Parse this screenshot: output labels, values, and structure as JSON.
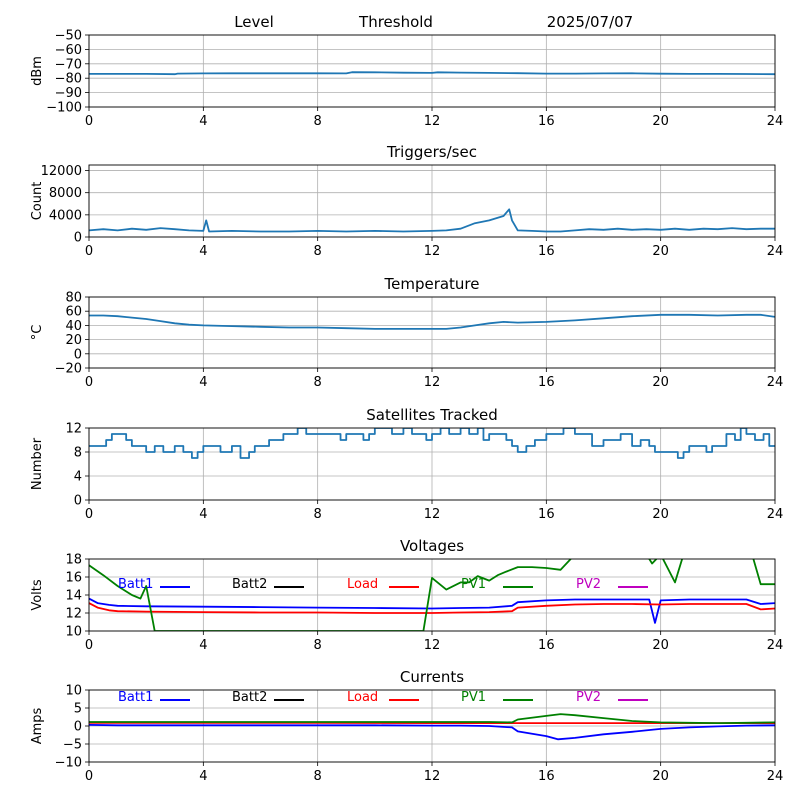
{
  "header": {
    "level_label": "Level",
    "threshold_label": "Threshold",
    "date": "2025/07/07"
  },
  "colors": {
    "series_default": "#1f77b4",
    "grid": "#b0b0b0",
    "batt1": "#0000ff",
    "batt2": "#000000",
    "load": "#ff0000",
    "pv1": "#008000",
    "pv2": "#bf00bf"
  },
  "chart_data": [
    {
      "type": "line",
      "title": "",
      "ylabel": "dBm",
      "xlim": [
        0,
        24
      ],
      "ylim": [
        -100,
        -50
      ],
      "xticks": [
        0,
        4,
        8,
        12,
        16,
        20,
        24
      ],
      "yticks": [
        -100,
        -90,
        -80,
        -70,
        -60,
        -50
      ],
      "grid": true,
      "series": [
        {
          "x": [
            0,
            1,
            2,
            3,
            3.1,
            4,
            5,
            6,
            7,
            8,
            9,
            9.2,
            10,
            11,
            12,
            12.2,
            13,
            14,
            15,
            16,
            17,
            18,
            19,
            20,
            21,
            22,
            23,
            24
          ],
          "values": [
            -77,
            -77,
            -77,
            -77.2,
            -76.8,
            -76.7,
            -76.6,
            -76.6,
            -76.6,
            -76.6,
            -76.7,
            -75.8,
            -75.9,
            -76.2,
            -76.3,
            -75.9,
            -76.1,
            -76.3,
            -76.5,
            -76.8,
            -76.8,
            -76.7,
            -76.6,
            -76.9,
            -77,
            -77,
            -77.1,
            -77.2
          ]
        }
      ]
    },
    {
      "type": "line",
      "title": "Triggers/sec",
      "ylabel": "Count",
      "xlim": [
        0,
        24
      ],
      "ylim": [
        0,
        13000
      ],
      "xticks": [
        0,
        4,
        8,
        12,
        16,
        20,
        24
      ],
      "yticks": [
        0,
        4000,
        8000,
        12000
      ],
      "grid": true,
      "series": [
        {
          "x": [
            0,
            0.5,
            1,
            1.5,
            2,
            2.5,
            3,
            3.5,
            4,
            4.1,
            4.2,
            5,
            6,
            7,
            8,
            9,
            10,
            11,
            12,
            12.5,
            13,
            13.5,
            14,
            14.5,
            14.7,
            14.8,
            15,
            15.5,
            16,
            16.5,
            17,
            17.5,
            18,
            18.5,
            19,
            19.5,
            20,
            20.5,
            21,
            21.5,
            22,
            22.5,
            23,
            23.5,
            24
          ],
          "values": [
            1200,
            1400,
            1200,
            1500,
            1300,
            1600,
            1400,
            1200,
            1100,
            3000,
            1000,
            1100,
            1000,
            1000,
            1100,
            1000,
            1100,
            1000,
            1100,
            1200,
            1500,
            2500,
            3000,
            3800,
            5000,
            3000,
            1200,
            1100,
            1000,
            1000,
            1200,
            1400,
            1300,
            1500,
            1300,
            1400,
            1300,
            1500,
            1300,
            1500,
            1400,
            1600,
            1400,
            1500,
            1500
          ]
        }
      ]
    },
    {
      "type": "line",
      "title": "Temperature",
      "ylabel": "°C",
      "xlim": [
        0,
        24
      ],
      "ylim": [
        -20,
        80
      ],
      "xticks": [
        0,
        4,
        8,
        12,
        16,
        20,
        24
      ],
      "yticks": [
        -20,
        0,
        20,
        40,
        60,
        80
      ],
      "grid": true,
      "series": [
        {
          "x": [
            0,
            0.5,
            1,
            1.5,
            2,
            2.5,
            3,
            3.5,
            4,
            5,
            6,
            7,
            8,
            9,
            10,
            11,
            12,
            12.5,
            13,
            13.5,
            14,
            14.5,
            15,
            16,
            17,
            18,
            19,
            20,
            21,
            22,
            23,
            23.5,
            24
          ],
          "values": [
            54,
            54,
            53,
            51,
            49,
            46,
            43,
            41,
            40,
            39,
            38,
            37,
            37,
            36,
            35,
            35,
            35,
            35,
            37,
            40,
            43,
            45,
            44,
            45,
            47,
            50,
            53,
            55,
            55,
            54,
            55,
            55,
            52
          ]
        }
      ]
    },
    {
      "type": "line",
      "title": "Satellites Tracked",
      "ylabel": "Number",
      "xlim": [
        0,
        24
      ],
      "ylim": [
        0,
        12
      ],
      "xticks": [
        0,
        4,
        8,
        12,
        16,
        20,
        24
      ],
      "yticks": [
        0,
        4,
        8,
        12
      ],
      "grid": true,
      "series": [
        {
          "x": [
            0,
            0.3,
            0.6,
            0.8,
            1.0,
            1.3,
            1.5,
            1.7,
            2.0,
            2.3,
            2.6,
            2.8,
            3.0,
            3.3,
            3.6,
            3.8,
            4.0,
            4.3,
            4.6,
            4.8,
            5.0,
            5.3,
            5.6,
            5.8,
            6.0,
            6.3,
            6.6,
            6.8,
            7.0,
            7.3,
            7.6,
            7.8,
            8.0,
            8.3,
            8.6,
            8.8,
            9.0,
            9.3,
            9.6,
            9.8,
            10.0,
            10.3,
            10.6,
            10.8,
            11.0,
            11.3,
            11.6,
            11.8,
            12.0,
            12.3,
            12.6,
            12.8,
            13.0,
            13.3,
            13.6,
            13.8,
            14.0,
            14.3,
            14.6,
            14.8,
            15.0,
            15.3,
            15.6,
            15.8,
            16.0,
            16.3,
            16.6,
            16.8,
            17.0,
            17.3,
            17.6,
            17.8,
            18.0,
            18.3,
            18.6,
            18.8,
            19.0,
            19.3,
            19.6,
            19.8,
            20.0,
            20.3,
            20.6,
            20.8,
            21.0,
            21.3,
            21.6,
            21.8,
            22.0,
            22.3,
            22.6,
            22.8,
            23.0,
            23.3,
            23.6,
            23.8,
            24.0
          ],
          "values": [
            9,
            9,
            10,
            11,
            11,
            10,
            9,
            9,
            8,
            9,
            8,
            8,
            9,
            8,
            7,
            8,
            9,
            9,
            8,
            8,
            9,
            7,
            8,
            9,
            9,
            10,
            10,
            11,
            11,
            12,
            11,
            11,
            11,
            11,
            11,
            10,
            11,
            11,
            10,
            11,
            12,
            12,
            11,
            11,
            12,
            11,
            11,
            10,
            11,
            12,
            11,
            11,
            12,
            11,
            12,
            10,
            11,
            11,
            10,
            9,
            8,
            9,
            10,
            10,
            11,
            11,
            12,
            12,
            11,
            11,
            9,
            9,
            10,
            10,
            11,
            11,
            9,
            10,
            9,
            8,
            8,
            8,
            7,
            8,
            9,
            9,
            8,
            9,
            9,
            11,
            10,
            12,
            11,
            10,
            11,
            9,
            9
          ]
        }
      ]
    },
    {
      "type": "line",
      "title": "Voltages",
      "ylabel": "Volts",
      "xlim": [
        0,
        24
      ],
      "ylim": [
        10,
        18
      ],
      "xticks": [
        0,
        4,
        8,
        12,
        16,
        20,
        24
      ],
      "yticks": [
        10,
        12,
        14,
        16,
        18
      ],
      "grid": true,
      "series": [
        {
          "name": "Batt1",
          "color": "#0000ff",
          "x": [
            0,
            0.3,
            0.7,
            1,
            2,
            4,
            6,
            8,
            10,
            12,
            13,
            14,
            14.8,
            15,
            16,
            17,
            18,
            19,
            19.6,
            19.8,
            20,
            21,
            22,
            23,
            23.5,
            24
          ],
          "values": [
            13.6,
            13.1,
            12.9,
            12.8,
            12.75,
            12.7,
            12.65,
            12.6,
            12.55,
            12.5,
            12.55,
            12.6,
            12.8,
            13.2,
            13.4,
            13.5,
            13.5,
            13.5,
            13.5,
            10.9,
            13.4,
            13.5,
            13.5,
            13.5,
            13.0,
            13.1
          ]
        },
        {
          "name": "Batt2",
          "color": "#000000",
          "x": [],
          "values": []
        },
        {
          "name": "Load",
          "color": "#ff0000",
          "x": [
            0,
            0.3,
            0.7,
            1,
            2,
            4,
            6,
            8,
            10,
            12,
            13,
            14,
            14.8,
            15,
            16,
            17,
            18,
            19,
            20,
            21,
            22,
            23,
            23.5,
            24
          ],
          "values": [
            13.1,
            12.6,
            12.3,
            12.2,
            12.15,
            12.1,
            12.05,
            12.05,
            12.0,
            12.0,
            12.05,
            12.1,
            12.2,
            12.6,
            12.8,
            12.95,
            13.0,
            13.0,
            12.95,
            13.0,
            13.0,
            13.0,
            12.4,
            12.5
          ]
        },
        {
          "name": "PV1",
          "color": "#008000",
          "x": [
            0,
            0.5,
            1,
            1.5,
            1.8,
            2.0,
            2.3,
            11.7,
            12.0,
            12.5,
            13.0,
            13.3,
            13.6,
            14.0,
            14.3,
            14.6,
            15.0,
            15.5,
            16.0,
            16.5,
            17.0,
            19.5,
            19.7,
            20.0,
            20.5,
            20.8,
            23.2,
            23.5,
            24.0
          ],
          "values": [
            17.3,
            16.2,
            15.0,
            14.0,
            13.6,
            15.0,
            10.0,
            10.0,
            15.9,
            14.6,
            15.4,
            15.4,
            16.1,
            15.6,
            16.2,
            16.6,
            17.1,
            17.1,
            17.0,
            16.8,
            18.5,
            18.5,
            17.5,
            18.5,
            15.4,
            18.5,
            18.5,
            15.2,
            15.2
          ]
        },
        {
          "name": "PV2",
          "color": "#bf00bf",
          "x": [],
          "values": []
        }
      ]
    },
    {
      "type": "line",
      "title": "Currents",
      "ylabel": "Amps",
      "xlim": [
        0,
        24
      ],
      "ylim": [
        -10,
        10
      ],
      "xticks": [
        0,
        4,
        8,
        12,
        16,
        20,
        24
      ],
      "yticks": [
        -10,
        -5,
        0,
        5,
        10
      ],
      "grid": true,
      "series": [
        {
          "name": "Batt1",
          "color": "#0000ff",
          "x": [
            0,
            1,
            2,
            4,
            6,
            8,
            10,
            12,
            13,
            14,
            14.8,
            15,
            16,
            16.4,
            17,
            18,
            19,
            20,
            21,
            22,
            23,
            24
          ],
          "values": [
            0.3,
            0.2,
            0.2,
            0.2,
            0.2,
            0.2,
            0.2,
            0.1,
            0.1,
            0.0,
            -0.4,
            -1.5,
            -2.8,
            -3.7,
            -3.3,
            -2.3,
            -1.6,
            -0.8,
            -0.4,
            -0.1,
            0.1,
            0.2
          ]
        },
        {
          "name": "Batt2",
          "color": "#000000",
          "x": [],
          "values": []
        },
        {
          "name": "Load",
          "color": "#ff0000",
          "x": [
            0,
            4,
            8,
            12,
            16,
            20,
            24
          ],
          "values": [
            0.9,
            0.9,
            0.9,
            0.8,
            0.8,
            0.8,
            0.8
          ]
        },
        {
          "name": "PV1",
          "color": "#008000",
          "x": [
            0,
            2,
            4,
            6,
            8,
            10,
            12,
            13,
            14,
            14.8,
            15,
            16,
            16.5,
            17,
            18,
            19,
            20,
            21,
            22,
            23,
            24
          ],
          "values": [
            1.1,
            1.1,
            1.1,
            1.1,
            1.1,
            1.1,
            1.1,
            1.1,
            1.1,
            1.0,
            1.8,
            2.8,
            3.3,
            3.0,
            2.2,
            1.4,
            1.0,
            0.9,
            0.8,
            0.9,
            1.0
          ]
        },
        {
          "name": "PV2",
          "color": "#bf00bf",
          "x": [],
          "values": []
        }
      ]
    }
  ]
}
